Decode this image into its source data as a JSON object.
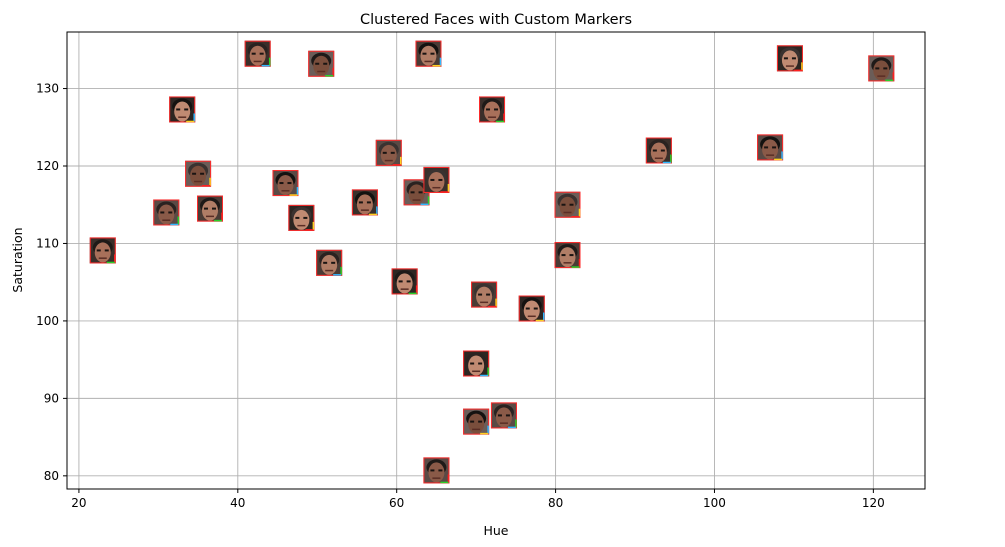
{
  "chart_data": {
    "type": "scatter",
    "title": "Clustered Faces with Custom Markers",
    "xlabel": "Hue",
    "ylabel": "Saturation",
    "xlim": [
      18.5,
      126.5
    ],
    "ylim": [
      78.3,
      137.3
    ],
    "xticks": [
      20,
      40,
      60,
      80,
      100,
      120
    ],
    "yticks": [
      80,
      90,
      100,
      110,
      120,
      130
    ],
    "grid": true,
    "marker": "face-thumbnail",
    "points": [
      {
        "x": 23.0,
        "y": 109.1
      },
      {
        "x": 31.0,
        "y": 114.0
      },
      {
        "x": 33.0,
        "y": 127.3
      },
      {
        "x": 35.0,
        "y": 119.0
      },
      {
        "x": 36.5,
        "y": 114.5
      },
      {
        "x": 42.5,
        "y": 134.5
      },
      {
        "x": 46.0,
        "y": 117.8
      },
      {
        "x": 48.0,
        "y": 113.3
      },
      {
        "x": 50.5,
        "y": 133.2
      },
      {
        "x": 51.5,
        "y": 107.5
      },
      {
        "x": 56.0,
        "y": 115.3
      },
      {
        "x": 59.0,
        "y": 121.7
      },
      {
        "x": 61.0,
        "y": 105.1
      },
      {
        "x": 62.5,
        "y": 116.6
      },
      {
        "x": 64.0,
        "y": 134.5
      },
      {
        "x": 65.0,
        "y": 118.2
      },
      {
        "x": 65.0,
        "y": 80.7
      },
      {
        "x": 70.0,
        "y": 94.5
      },
      {
        "x": 70.0,
        "y": 87.0
      },
      {
        "x": 71.0,
        "y": 103.4
      },
      {
        "x": 72.0,
        "y": 127.3
      },
      {
        "x": 73.5,
        "y": 87.8
      },
      {
        "x": 77.0,
        "y": 101.6
      },
      {
        "x": 81.5,
        "y": 115.0
      },
      {
        "x": 81.5,
        "y": 108.5
      },
      {
        "x": 93.0,
        "y": 122.0
      },
      {
        "x": 107.0,
        "y": 122.4
      },
      {
        "x": 109.5,
        "y": 133.9
      },
      {
        "x": 121.0,
        "y": 132.6
      }
    ]
  }
}
